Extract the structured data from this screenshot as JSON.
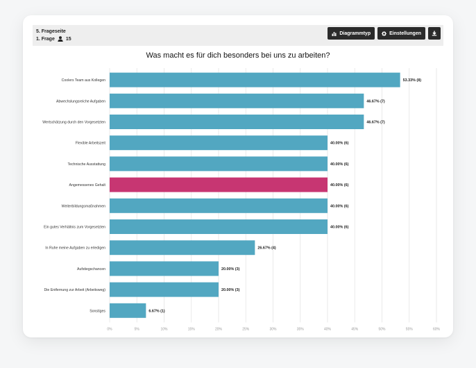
{
  "header": {
    "page_label": "5. Frageseite",
    "question_label": "1. Frage",
    "respondents": "15",
    "buttons": {
      "chart_type": "Diagrammtyp",
      "settings": "Einstellungen"
    },
    "icons": {
      "user": "user-icon",
      "chart_type": "bar-chart-icon",
      "settings": "gear-icon",
      "download": "download-icon"
    }
  },
  "chart_data": {
    "type": "bar",
    "orientation": "horizontal",
    "title": "Was macht es für dich besonders bei uns zu arbeiten?",
    "categories": [
      "Coolers Team aus Kollegen",
      "Abwechslungsreiche Aufgaben",
      "Wertschätzung durch den Vorgesetzten",
      "Flexible Arbeitszeit",
      "Technische Ausstattung",
      "Angemessenes Gehalt",
      "Weiterbildungsmaßnahmen",
      "Ein gutes Verhältnis zum Vorgesetzten",
      "In Ruhe meine Aufgaben zu erledigen",
      "Aufstiegschancen",
      "Die Entfernung zur Arbeit (Arbeitsweg)",
      "Sonstiges"
    ],
    "values": [
      53.33,
      46.67,
      46.67,
      40.0,
      40.0,
      40.0,
      40.0,
      40.0,
      26.67,
      20.0,
      20.0,
      6.67
    ],
    "value_labels": [
      "53.33% (8)",
      "46.67% (7)",
      "46.67% (7)",
      "40.00% (6)",
      "40.00% (6)",
      "40.00% (6)",
      "40.00% (6)",
      "40.00% (6)",
      "26.67% (4)",
      "20.00% (3)",
      "20.00% (3)",
      "6.67% (1)"
    ],
    "highlight_index": 5,
    "colors": {
      "bar": "#52a7c1",
      "highlight": "#c73672",
      "grid": "#e4e4e4"
    },
    "xlim": [
      0,
      60
    ],
    "x_ticks": [
      "0%",
      "5%",
      "10%",
      "15%",
      "20%",
      "25%",
      "30%",
      "35%",
      "40%",
      "45%",
      "50%",
      "55%",
      "60%"
    ],
    "grid": true
  }
}
